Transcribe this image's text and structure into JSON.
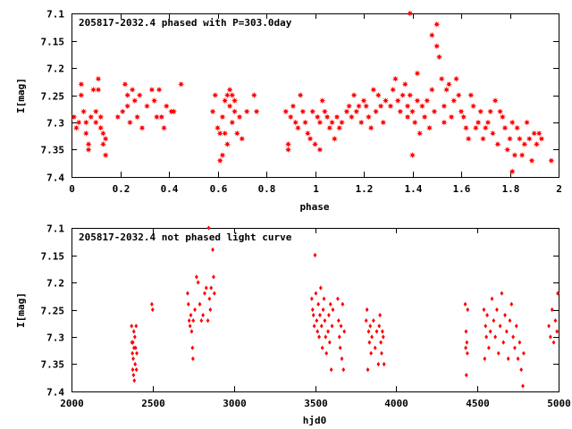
{
  "chart_data": [
    {
      "type": "scatter",
      "title": "205817-2032.4 phased with P=303.0day",
      "xlabel": "phase",
      "ylabel": "I[mag]",
      "xlim": [
        0,
        2
      ],
      "ylim": [
        7.1,
        7.4
      ],
      "y_inverted": true,
      "grid": false,
      "marker": "star",
      "color": "#ff0000",
      "xticks": [
        0,
        0.2,
        0.4,
        0.6,
        0.8,
        1,
        1.2,
        1.4,
        1.6,
        1.8,
        2
      ],
      "xtick_labels": [
        "0",
        "0.2",
        "0.4",
        "0.6",
        "0.8",
        "1",
        "1.2",
        "1.4",
        "1.6",
        "1.8",
        "2"
      ],
      "yticks": [
        7.1,
        7.15,
        7.2,
        7.25,
        7.3,
        7.35,
        7.4
      ],
      "ytick_labels": [
        "7.1",
        "7.15",
        "7.2",
        "7.25",
        "7.3",
        "7.35",
        "7.4"
      ],
      "points": [
        [
          0.01,
          7.29
        ],
        [
          0.02,
          7.31
        ],
        [
          0.03,
          7.3
        ],
        [
          0.04,
          7.23
        ],
        [
          0.04,
          7.25
        ],
        [
          0.05,
          7.28
        ],
        [
          0.06,
          7.3
        ],
        [
          0.06,
          7.32
        ],
        [
          0.07,
          7.34
        ],
        [
          0.07,
          7.35
        ],
        [
          0.08,
          7.29
        ],
        [
          0.09,
          7.24
        ],
        [
          0.1,
          7.28
        ],
        [
          0.1,
          7.3
        ],
        [
          0.11,
          7.22
        ],
        [
          0.11,
          7.24
        ],
        [
          0.12,
          7.29
        ],
        [
          0.12,
          7.31
        ],
        [
          0.13,
          7.32
        ],
        [
          0.13,
          7.34
        ],
        [
          0.14,
          7.36
        ],
        [
          0.14,
          7.33
        ],
        [
          0.19,
          7.29
        ],
        [
          0.21,
          7.28
        ],
        [
          0.22,
          7.23
        ],
        [
          0.23,
          7.25
        ],
        [
          0.23,
          7.27
        ],
        [
          0.24,
          7.3
        ],
        [
          0.25,
          7.24
        ],
        [
          0.26,
          7.26
        ],
        [
          0.27,
          7.29
        ],
        [
          0.28,
          7.25
        ],
        [
          0.29,
          7.31
        ],
        [
          0.31,
          7.27
        ],
        [
          0.33,
          7.24
        ],
        [
          0.34,
          7.26
        ],
        [
          0.35,
          7.29
        ],
        [
          0.36,
          7.24
        ],
        [
          0.37,
          7.29
        ],
        [
          0.38,
          7.31
        ],
        [
          0.39,
          7.27
        ],
        [
          0.41,
          7.28
        ],
        [
          0.42,
          7.28
        ],
        [
          0.45,
          7.23
        ],
        [
          0.58,
          7.28
        ],
        [
          0.59,
          7.25
        ],
        [
          0.6,
          7.31
        ],
        [
          0.61,
          7.37
        ],
        [
          0.61,
          7.32
        ],
        [
          0.62,
          7.29
        ],
        [
          0.62,
          7.36
        ],
        [
          0.63,
          7.26
        ],
        [
          0.63,
          7.32
        ],
        [
          0.64,
          7.25
        ],
        [
          0.64,
          7.34
        ],
        [
          0.65,
          7.24
        ],
        [
          0.65,
          7.27
        ],
        [
          0.66,
          7.25
        ],
        [
          0.66,
          7.3
        ],
        [
          0.67,
          7.28
        ],
        [
          0.67,
          7.26
        ],
        [
          0.68,
          7.32
        ],
        [
          0.69,
          7.29
        ],
        [
          0.7,
          7.33
        ],
        [
          0.72,
          7.28
        ],
        [
          0.75,
          7.25
        ],
        [
          0.76,
          7.28
        ],
        [
          0.88,
          7.28
        ],
        [
          0.89,
          7.35
        ],
        [
          0.89,
          7.34
        ],
        [
          0.9,
          7.29
        ],
        [
          0.91,
          7.27
        ],
        [
          0.92,
          7.3
        ],
        [
          0.93,
          7.31
        ],
        [
          0.94,
          7.25
        ],
        [
          0.95,
          7.28
        ],
        [
          0.96,
          7.3
        ],
        [
          0.97,
          7.32
        ],
        [
          0.98,
          7.33
        ],
        [
          0.99,
          7.28
        ],
        [
          1.0,
          7.34
        ],
        [
          1.01,
          7.29
        ],
        [
          1.02,
          7.3
        ],
        [
          1.02,
          7.35
        ],
        [
          1.03,
          7.26
        ],
        [
          1.04,
          7.28
        ],
        [
          1.05,
          7.29
        ],
        [
          1.06,
          7.31
        ],
        [
          1.07,
          7.3
        ],
        [
          1.08,
          7.33
        ],
        [
          1.09,
          7.29
        ],
        [
          1.1,
          7.31
        ],
        [
          1.11,
          7.3
        ],
        [
          1.13,
          7.28
        ],
        [
          1.14,
          7.27
        ],
        [
          1.15,
          7.29
        ],
        [
          1.16,
          7.25
        ],
        [
          1.17,
          7.28
        ],
        [
          1.18,
          7.27
        ],
        [
          1.19,
          7.3
        ],
        [
          1.2,
          7.26
        ],
        [
          1.21,
          7.27
        ],
        [
          1.22,
          7.29
        ],
        [
          1.23,
          7.31
        ],
        [
          1.24,
          7.24
        ],
        [
          1.25,
          7.28
        ],
        [
          1.26,
          7.25
        ],
        [
          1.27,
          7.27
        ],
        [
          1.28,
          7.3
        ],
        [
          1.29,
          7.26
        ],
        [
          1.31,
          7.27
        ],
        [
          1.32,
          7.24
        ],
        [
          1.33,
          7.22
        ],
        [
          1.34,
          7.26
        ],
        [
          1.35,
          7.28
        ],
        [
          1.36,
          7.25
        ],
        [
          1.37,
          7.23
        ],
        [
          1.38,
          7.27
        ],
        [
          1.38,
          7.29
        ],
        [
          1.39,
          7.1
        ],
        [
          1.39,
          7.25
        ],
        [
          1.4,
          7.28
        ],
        [
          1.4,
          7.36
        ],
        [
          1.41,
          7.3
        ],
        [
          1.42,
          7.21
        ],
        [
          1.42,
          7.26
        ],
        [
          1.43,
          7.32
        ],
        [
          1.44,
          7.27
        ],
        [
          1.45,
          7.29
        ],
        [
          1.46,
          7.26
        ],
        [
          1.47,
          7.31
        ],
        [
          1.48,
          7.24
        ],
        [
          1.48,
          7.14
        ],
        [
          1.49,
          7.28
        ],
        [
          1.5,
          7.12
        ],
        [
          1.5,
          7.16
        ],
        [
          1.51,
          7.18
        ],
        [
          1.52,
          7.22
        ],
        [
          1.53,
          7.27
        ],
        [
          1.53,
          7.3
        ],
        [
          1.54,
          7.24
        ],
        [
          1.55,
          7.23
        ],
        [
          1.56,
          7.29
        ],
        [
          1.57,
          7.26
        ],
        [
          1.58,
          7.22
        ],
        [
          1.59,
          7.25
        ],
        [
          1.6,
          7.28
        ],
        [
          1.61,
          7.29
        ],
        [
          1.62,
          7.31
        ],
        [
          1.63,
          7.33
        ],
        [
          1.64,
          7.25
        ],
        [
          1.65,
          7.27
        ],
        [
          1.66,
          7.31
        ],
        [
          1.67,
          7.3
        ],
        [
          1.68,
          7.28
        ],
        [
          1.69,
          7.33
        ],
        [
          1.7,
          7.31
        ],
        [
          1.71,
          7.3
        ],
        [
          1.72,
          7.28
        ],
        [
          1.73,
          7.32
        ],
        [
          1.74,
          7.26
        ],
        [
          1.75,
          7.34
        ],
        [
          1.76,
          7.28
        ],
        [
          1.77,
          7.29
        ],
        [
          1.78,
          7.31
        ],
        [
          1.79,
          7.35
        ],
        [
          1.8,
          7.33
        ],
        [
          1.81,
          7.3
        ],
        [
          1.81,
          7.39
        ],
        [
          1.82,
          7.36
        ],
        [
          1.83,
          7.31
        ],
        [
          1.84,
          7.33
        ],
        [
          1.85,
          7.36
        ],
        [
          1.86,
          7.34
        ],
        [
          1.87,
          7.3
        ],
        [
          1.88,
          7.33
        ],
        [
          1.89,
          7.37
        ],
        [
          1.9,
          7.32
        ],
        [
          1.91,
          7.34
        ],
        [
          1.92,
          7.32
        ],
        [
          1.93,
          7.33
        ],
        [
          1.97,
          7.37
        ]
      ]
    },
    {
      "type": "scatter",
      "title": "205817-2032.4 not phased light curve",
      "xlabel": "hjd0",
      "ylabel": "I[mag]",
      "xlim": [
        2000,
        5000
      ],
      "ylim": [
        7.1,
        7.4
      ],
      "y_inverted": true,
      "grid": false,
      "marker": "diamond",
      "color": "#ff0000",
      "xticks": [
        2000,
        2500,
        3000,
        3500,
        4000,
        4500,
        5000
      ],
      "xtick_labels": [
        "2000",
        "2500",
        "3000",
        "3500",
        "4000",
        "4500",
        "5000"
      ],
      "yticks": [
        7.1,
        7.15,
        7.2,
        7.25,
        7.3,
        7.35,
        7.4
      ],
      "ytick_labels": [
        "7.1",
        "7.15",
        "7.2",
        "7.25",
        "7.3",
        "7.35",
        "7.4"
      ],
      "points": [
        [
          2370,
          7.28
        ],
        [
          2372,
          7.31
        ],
        [
          2375,
          7.33
        ],
        [
          2377,
          7.36
        ],
        [
          2378,
          7.31
        ],
        [
          2380,
          7.34
        ],
        [
          2382,
          7.37
        ],
        [
          2384,
          7.29
        ],
        [
          2385,
          7.32
        ],
        [
          2387,
          7.38
        ],
        [
          2390,
          7.3
        ],
        [
          2392,
          7.35
        ],
        [
          2395,
          7.32
        ],
        [
          2398,
          7.28
        ],
        [
          2400,
          7.36
        ],
        [
          2402,
          7.33
        ],
        [
          2495,
          7.24
        ],
        [
          2500,
          7.25
        ],
        [
          2715,
          7.22
        ],
        [
          2720,
          7.24
        ],
        [
          2725,
          7.27
        ],
        [
          2730,
          7.28
        ],
        [
          2735,
          7.26
        ],
        [
          2740,
          7.29
        ],
        [
          2745,
          7.32
        ],
        [
          2748,
          7.34
        ],
        [
          2750,
          7.27
        ],
        [
          2760,
          7.25
        ],
        [
          2770,
          7.19
        ],
        [
          2780,
          7.2
        ],
        [
          2790,
          7.24
        ],
        [
          2800,
          7.27
        ],
        [
          2810,
          7.26
        ],
        [
          2820,
          7.22
        ],
        [
          2830,
          7.21
        ],
        [
          2840,
          7.27
        ],
        [
          2845,
          7.1
        ],
        [
          2850,
          7.23
        ],
        [
          2855,
          7.25
        ],
        [
          2860,
          7.21
        ],
        [
          2870,
          7.14
        ],
        [
          2875,
          7.19
        ],
        [
          2880,
          7.22
        ],
        [
          3480,
          7.23
        ],
        [
          3485,
          7.25
        ],
        [
          3490,
          7.26
        ],
        [
          3495,
          7.28
        ],
        [
          3500,
          7.15
        ],
        [
          3505,
          7.22
        ],
        [
          3510,
          7.27
        ],
        [
          3515,
          7.29
        ],
        [
          3520,
          7.24
        ],
        [
          3525,
          7.3
        ],
        [
          3530,
          7.26
        ],
        [
          3535,
          7.21
        ],
        [
          3540,
          7.28
        ],
        [
          3545,
          7.32
        ],
        [
          3550,
          7.25
        ],
        [
          3555,
          7.23
        ],
        [
          3560,
          7.27
        ],
        [
          3565,
          7.3
        ],
        [
          3570,
          7.33
        ],
        [
          3580,
          7.29
        ],
        [
          3585,
          7.26
        ],
        [
          3590,
          7.31
        ],
        [
          3595,
          7.24
        ],
        [
          3600,
          7.36
        ],
        [
          3605,
          7.28
        ],
        [
          3610,
          7.25
        ],
        [
          3640,
          7.23
        ],
        [
          3645,
          7.27
        ],
        [
          3650,
          7.3
        ],
        [
          3655,
          7.32
        ],
        [
          3660,
          7.28
        ],
        [
          3665,
          7.34
        ],
        [
          3670,
          7.24
        ],
        [
          3675,
          7.36
        ],
        [
          3680,
          7.29
        ],
        [
          3815,
          7.27
        ],
        [
          3820,
          7.25
        ],
        [
          3825,
          7.36
        ],
        [
          3830,
          7.29
        ],
        [
          3835,
          7.31
        ],
        [
          3840,
          7.28
        ],
        [
          3845,
          7.33
        ],
        [
          3850,
          7.3
        ],
        [
          3860,
          7.27
        ],
        [
          3870,
          7.32
        ],
        [
          3880,
          7.29
        ],
        [
          3890,
          7.35
        ],
        [
          3895,
          7.28
        ],
        [
          3900,
          7.26
        ],
        [
          3905,
          7.31
        ],
        [
          3910,
          7.33
        ],
        [
          3915,
          7.29
        ],
        [
          3920,
          7.3
        ],
        [
          3925,
          7.35
        ],
        [
          4425,
          7.24
        ],
        [
          4428,
          7.32
        ],
        [
          4430,
          7.29
        ],
        [
          4432,
          7.37
        ],
        [
          4435,
          7.31
        ],
        [
          4438,
          7.33
        ],
        [
          4440,
          7.25
        ],
        [
          4540,
          7.25
        ],
        [
          4545,
          7.34
        ],
        [
          4550,
          7.28
        ],
        [
          4555,
          7.3
        ],
        [
          4560,
          7.26
        ],
        [
          4570,
          7.32
        ],
        [
          4580,
          7.29
        ],
        [
          4590,
          7.23
        ],
        [
          4600,
          7.27
        ],
        [
          4610,
          7.3
        ],
        [
          4620,
          7.25
        ],
        [
          4630,
          7.33
        ],
        [
          4640,
          7.28
        ],
        [
          4650,
          7.22
        ],
        [
          4660,
          7.31
        ],
        [
          4670,
          7.26
        ],
        [
          4680,
          7.29
        ],
        [
          4690,
          7.34
        ],
        [
          4700,
          7.27
        ],
        [
          4710,
          7.24
        ],
        [
          4720,
          7.3
        ],
        [
          4730,
          7.32
        ],
        [
          4740,
          7.28
        ],
        [
          4750,
          7.34
        ],
        [
          4760,
          7.31
        ],
        [
          4770,
          7.36
        ],
        [
          4780,
          7.39
        ],
        [
          4785,
          7.33
        ],
        [
          4940,
          7.28
        ],
        [
          4950,
          7.3
        ],
        [
          4960,
          7.25
        ],
        [
          4970,
          7.31
        ],
        [
          4980,
          7.27
        ],
        [
          4990,
          7.29
        ],
        [
          4995,
          7.22
        ]
      ]
    }
  ]
}
